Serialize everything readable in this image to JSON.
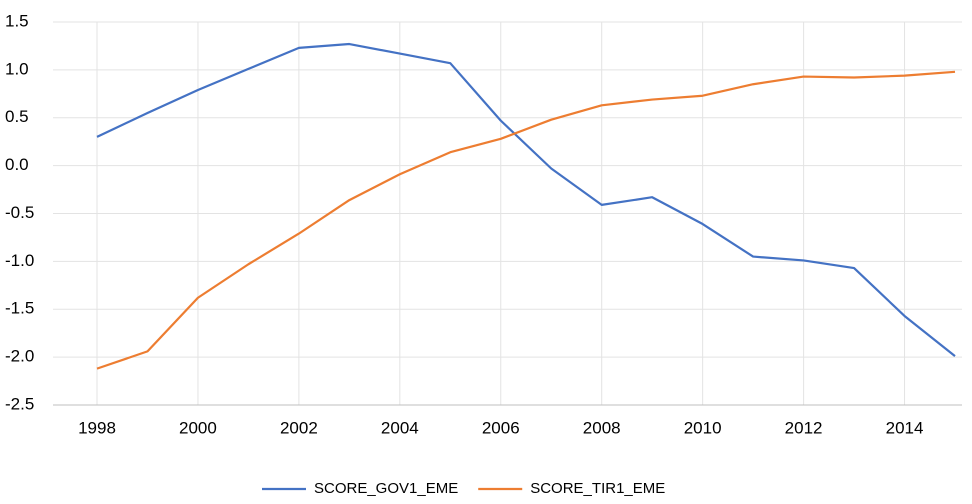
{
  "chart_data": {
    "type": "line",
    "categories": [
      "1998",
      null,
      "2000",
      null,
      "2002",
      null,
      "2004",
      null,
      "2006",
      null,
      "2008",
      null,
      "2010",
      null,
      "2012",
      null,
      "2014",
      null
    ],
    "series": [
      {
        "name": "SCORE_GOV1_EME",
        "color": "#4472c4",
        "values": [
          0.3,
          0.55,
          0.79,
          1.01,
          1.23,
          1.27,
          1.17,
          1.07,
          0.47,
          -0.03,
          -0.41,
          -0.33,
          -0.61,
          -0.95,
          -0.99,
          -1.07,
          -1.57,
          -1.99
        ]
      },
      {
        "name": "SCORE_TIR1_EME",
        "color": "#ed7d31",
        "values": [
          -2.12,
          -1.94,
          -1.38,
          -1.03,
          -0.71,
          -0.36,
          -0.09,
          0.14,
          0.28,
          0.48,
          0.63,
          0.69,
          0.73,
          0.85,
          0.93,
          0.92,
          0.94,
          0.98
        ]
      }
    ],
    "ylim": [
      -2.5,
      1.5
    ],
    "yticks": [
      -2.5,
      {
        "value": -2,
        "label": "-2.0"
      },
      -1.5,
      {
        "value": -1,
        "label": "-1.0"
      },
      -0.5,
      {
        "value": 0,
        "label": "0.0"
      },
      0.5,
      {
        "value": 1,
        "label": "1.0"
      },
      1.5
    ],
    "grid": true,
    "legend": "bottom"
  }
}
